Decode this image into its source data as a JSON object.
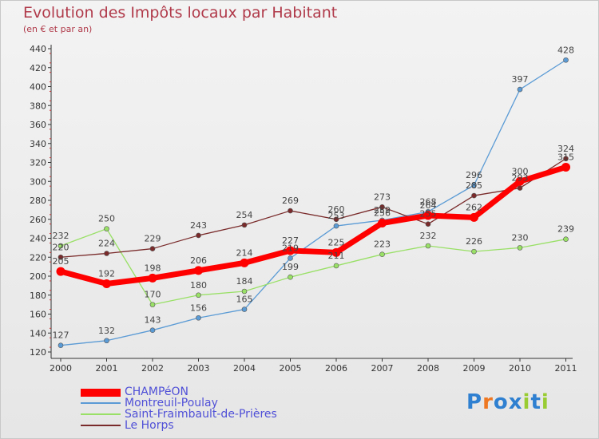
{
  "chart_data": {
    "type": "line",
    "title": "Evolution des Impôts locaux par Habitant",
    "subtitle": "(en € et par an)",
    "xlabel": "",
    "ylabel": "",
    "ylim": [
      120,
      440
    ],
    "y_ticks": [
      120,
      140,
      160,
      180,
      200,
      220,
      240,
      260,
      280,
      300,
      320,
      340,
      360,
      380,
      400,
      420,
      440
    ],
    "categories": [
      "2000",
      "2001",
      "2002",
      "2003",
      "2004",
      "2005",
      "2006",
      "2007",
      "2008",
      "2009",
      "2010",
      "2011"
    ],
    "grid": false,
    "legend_position": "bottom-left",
    "series": [
      {
        "name": "CHAMPéON",
        "color": "#ff0000",
        "values": [
          205,
          192,
          198,
          206,
          214,
          227,
          225,
          256,
          264,
          262,
          300,
          315
        ]
      },
      {
        "name": "Montreuil-Poulay",
        "color": "#5b9bd5",
        "values": [
          127,
          132,
          143,
          156,
          165,
          219,
          253,
          259,
          268,
          296,
          397,
          428
        ]
      },
      {
        "name": "Saint-Fraimbault-de-Prières",
        "color": "#99e066",
        "values": [
          232,
          250,
          170,
          180,
          184,
          199,
          211,
          223,
          232,
          226,
          230,
          239
        ]
      },
      {
        "name": "Le Horps",
        "color": "#7a2a2a",
        "values": [
          220,
          224,
          229,
          243,
          254,
          269,
          260,
          273,
          255,
          285,
          293,
          324
        ]
      }
    ]
  },
  "brand": {
    "letters": [
      "P",
      "r",
      "o",
      "x",
      "i",
      "t",
      "i"
    ],
    "colors": [
      "#2f80d0",
      "#ee7722",
      "#2f80d0",
      "#2f80d0",
      "#99cc33",
      "#2f80d0",
      "#99cc33"
    ]
  }
}
